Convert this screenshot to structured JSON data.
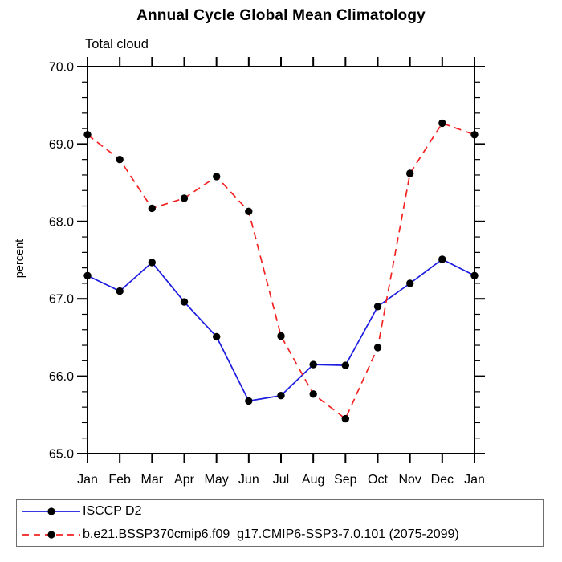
{
  "chart_data": {
    "type": "line",
    "title": "Annual Cycle Global Mean Climatology",
    "subtitle": "Total cloud",
    "ylabel": "percent",
    "categories": [
      "Jan",
      "Feb",
      "Mar",
      "Apr",
      "May",
      "Jun",
      "Jul",
      "Aug",
      "Sep",
      "Oct",
      "Nov",
      "Dec",
      "Jan"
    ],
    "ylim": [
      65.0,
      70.0
    ],
    "ytick_step": 1.0,
    "ytick_minor_step": 0.2,
    "ytick_labels": [
      "65.0",
      "66.0",
      "67.0",
      "68.0",
      "69.0",
      "70.0"
    ],
    "grid": false,
    "legend_position": "bottom",
    "axis_color": "#000000",
    "marker_color": "#000000",
    "series": [
      {
        "name": "ISCCP D2",
        "color": "#1c1ce0",
        "line_style": "solid",
        "values": [
          67.3,
          67.1,
          67.47,
          66.96,
          66.51,
          65.68,
          65.75,
          66.15,
          66.14,
          66.9,
          67.2,
          67.51,
          67.3
        ]
      },
      {
        "name": "b.e21.BSSP370cmip6.f09_g17.CMIP6-SSP3-7.0.101 (2075-2099)",
        "color": "#f32222",
        "line_style": "dashed",
        "values": [
          69.12,
          68.8,
          68.17,
          68.3,
          68.58,
          68.13,
          66.52,
          65.77,
          65.45,
          66.37,
          68.62,
          69.27,
          69.12
        ]
      }
    ]
  }
}
